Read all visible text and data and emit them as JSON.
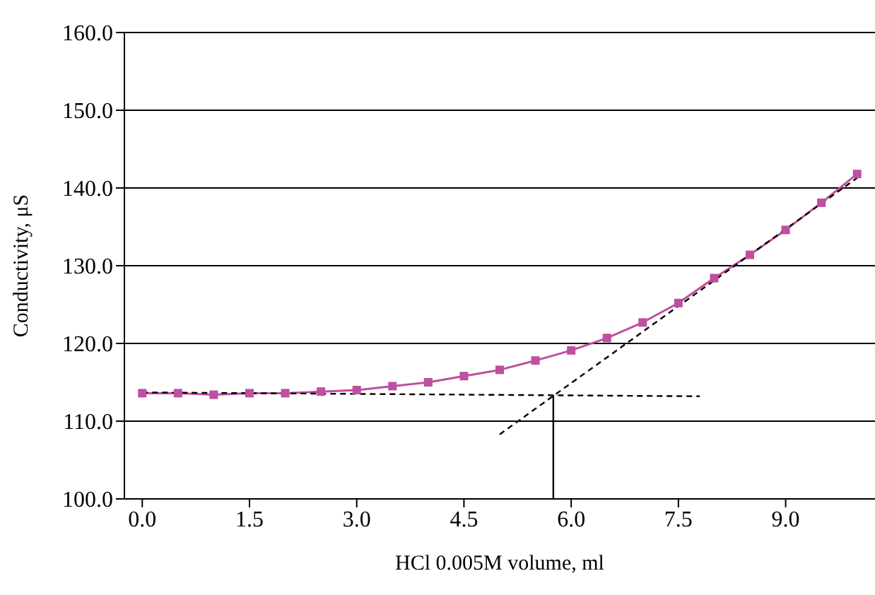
{
  "chart_data": {
    "type": "line",
    "xlabel": "HCl 0.005M volume, ml",
    "ylabel": "Conductivity, μS",
    "xlim": [
      -0.25,
      10.25
    ],
    "ylim": [
      100,
      160
    ],
    "xticks": [
      {
        "value": 0,
        "label": "0.0"
      },
      {
        "value": 1.5,
        "label": "1.5"
      },
      {
        "value": 3,
        "label": "3.0"
      },
      {
        "value": 4.5,
        "label": "4.5"
      },
      {
        "value": 6,
        "label": "6.0"
      },
      {
        "value": 7.5,
        "label": "7.5"
      },
      {
        "value": 9,
        "label": "9.0"
      }
    ],
    "yticks": [
      {
        "value": 100,
        "label": "100.0"
      },
      {
        "value": 110,
        "label": "110.0"
      },
      {
        "value": 120,
        "label": "120.0"
      },
      {
        "value": 130,
        "label": "130.0"
      },
      {
        "value": 140,
        "label": "140.0"
      },
      {
        "value": 150,
        "label": "150.0"
      },
      {
        "value": 160,
        "label": "160.0"
      }
    ],
    "grid": "y",
    "series": [
      {
        "color": "#bf4fa0",
        "marker": "square",
        "line_style": "solid",
        "x": [
          0,
          0.5,
          1,
          1.5,
          2,
          2.5,
          3,
          3.5,
          4,
          4.5,
          5,
          5.5,
          6,
          6.5,
          7,
          7.5,
          8,
          8.5,
          9,
          9.5,
          10
        ],
        "values": [
          113.6,
          113.6,
          113.4,
          113.6,
          113.6,
          113.8,
          114.0,
          114.5,
          115.0,
          115.8,
          116.6,
          117.8,
          119.1,
          120.7,
          122.7,
          125.2,
          128.4,
          131.4,
          134.6,
          138.1,
          141.8
        ]
      },
      {
        "color": "#000000",
        "marker": "none",
        "line_style": "dashed",
        "x": [
          0,
          7.8
        ],
        "values": [
          113.7,
          113.2
        ]
      },
      {
        "color": "#000000",
        "marker": "none",
        "line_style": "dashed",
        "x": [
          5,
          10
        ],
        "values": [
          108.3,
          141.3
        ]
      },
      {
        "color": "#000000",
        "marker": "none",
        "line_style": "solid",
        "x": [
          5.75,
          5.75
        ],
        "values": [
          113.3,
          100
        ]
      }
    ]
  }
}
